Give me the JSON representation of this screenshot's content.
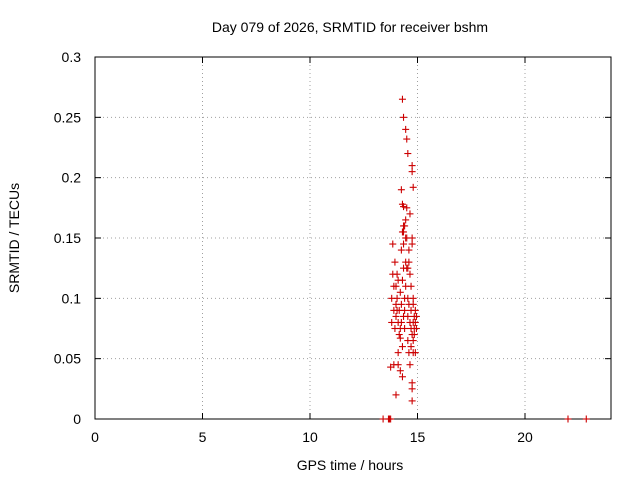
{
  "chart_data": {
    "type": "scatter",
    "title": "Day 079 of 2026, SRMTID for receiver bshm",
    "xlabel": "GPS time / hours",
    "ylabel": "SRMTID / TECUs",
    "xlim": [
      0,
      24
    ],
    "ylim": [
      0,
      0.3
    ],
    "xticks": [
      0,
      5,
      10,
      15,
      20
    ],
    "xtick_labels": [
      "0",
      "5",
      "10",
      "15",
      "20"
    ],
    "yticks": [
      0,
      0.05,
      0.1,
      0.15,
      0.2,
      0.25,
      0.3
    ],
    "ytick_labels": [
      "0",
      "0.05",
      "0.1",
      "0.15",
      "0.2",
      "0.25",
      "0.3"
    ],
    "grid": true,
    "marker": "+",
    "color": "#cc0000",
    "series": [
      {
        "name": "SRMTID",
        "x": [
          13.4,
          13.65,
          13.7,
          13.75,
          22.0,
          22.85,
          13.75,
          13.8,
          13.8,
          13.85,
          13.85,
          13.9,
          13.9,
          13.9,
          13.95,
          13.95,
          14.0,
          14.0,
          14.0,
          14.0,
          14.05,
          14.05,
          14.05,
          14.1,
          14.1,
          14.1,
          14.15,
          14.15,
          14.2,
          14.2,
          14.2,
          14.25,
          14.25,
          14.25,
          14.3,
          14.3,
          14.3,
          14.3,
          14.35,
          14.35,
          14.35,
          14.35,
          14.4,
          14.4,
          14.4,
          14.45,
          14.45,
          14.45,
          14.5,
          14.5,
          14.5,
          14.55,
          14.55,
          14.55,
          14.6,
          14.6,
          14.6,
          14.6,
          14.65,
          14.65,
          14.65,
          14.65,
          14.7,
          14.7,
          14.7,
          14.7,
          14.75,
          14.75,
          14.75,
          14.75,
          14.75,
          14.75,
          14.8,
          14.8,
          14.8,
          14.8,
          14.85,
          14.85,
          14.85,
          14.9,
          14.9,
          14.9,
          14.95,
          14.95,
          14.3,
          14.25,
          14.35,
          14.45,
          14.5,
          14.55,
          14.75,
          14.75,
          14.8,
          14.3,
          14.35,
          14.4,
          14.35,
          14.45,
          14.55,
          14.1,
          14.2,
          14.8
        ],
        "y": [
          0.0,
          0.0,
          0.0,
          0.0,
          0.0,
          0.0,
          0.043,
          0.08,
          0.1,
          0.12,
          0.145,
          0.09,
          0.11,
          0.045,
          0.075,
          0.13,
          0.085,
          0.095,
          0.11,
          0.02,
          0.09,
          0.1,
          0.12,
          0.08,
          0.115,
          0.055,
          0.07,
          0.09,
          0.075,
          0.105,
          0.04,
          0.08,
          0.14,
          0.095,
          0.035,
          0.06,
          0.155,
          0.115,
          0.145,
          0.16,
          0.125,
          0.085,
          0.09,
          0.1,
          0.075,
          0.13,
          0.11,
          0.165,
          0.15,
          0.125,
          0.175,
          0.1,
          0.085,
          0.065,
          0.13,
          0.14,
          0.095,
          0.055,
          0.17,
          0.12,
          0.08,
          0.045,
          0.075,
          0.09,
          0.06,
          0.11,
          0.145,
          0.15,
          0.07,
          0.03,
          0.025,
          0.015,
          0.065,
          0.08,
          0.095,
          0.055,
          0.075,
          0.085,
          0.07,
          0.08,
          0.09,
          0.055,
          0.075,
          0.085,
          0.265,
          0.19,
          0.25,
          0.24,
          0.232,
          0.22,
          0.205,
          0.21,
          0.192,
          0.178,
          0.176,
          0.16,
          0.155,
          0.15,
          0.125,
          0.045,
          0.067,
          0.1
        ]
      }
    ]
  }
}
